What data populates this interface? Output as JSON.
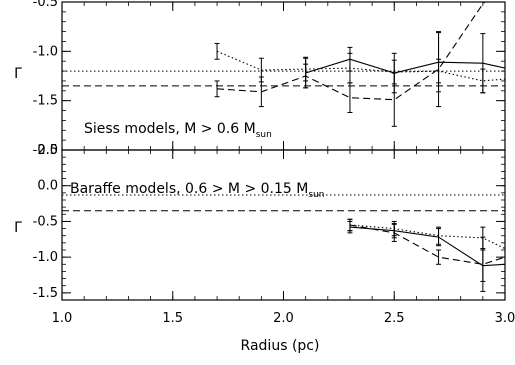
{
  "chart_data": [
    {
      "type": "line",
      "panel": "top",
      "annotation": {
        "text": "Siess models, M > 0.6 M",
        "sub": "sun"
      },
      "ylabel": "Γ",
      "xlim": [
        1.0,
        3.0
      ],
      "ylim": [
        -2.0,
        -0.5
      ],
      "yticks": [
        -0.5,
        -1.0,
        -1.5,
        -2.0
      ],
      "yticklabels": [
        "-0.5",
        "-1.0",
        "-1.5",
        "-2.0"
      ],
      "reference_lines": [
        {
          "style": "dotted",
          "y": -1.2
        },
        {
          "style": "dashed",
          "y": -1.35
        }
      ],
      "series": [
        {
          "style": "solid",
          "x": [
            2.1,
            2.3,
            2.5,
            2.7,
            2.9,
            3.0
          ],
          "y": [
            -1.22,
            -1.08,
            -1.22,
            -1.11,
            -1.12,
            -1.17
          ],
          "err": [
            0.15,
            0.12,
            0.2,
            0.3,
            0.3,
            0
          ]
        },
        {
          "style": "dashed",
          "x": [
            1.7,
            1.9,
            2.1,
            2.3,
            2.5,
            2.7,
            2.9,
            3.0
          ],
          "y": [
            -1.38,
            -1.41,
            -1.25,
            -1.47,
            -1.49,
            -1.18,
            -0.52,
            -0.3
          ],
          "err": [
            0.08,
            0.15,
            0.12,
            0.15,
            0.27,
            0.38,
            0,
            0
          ]
        },
        {
          "style": "dotted",
          "x": [
            1.7,
            1.9,
            2.1,
            2.3,
            2.5,
            2.7,
            2.9,
            3.0
          ],
          "y": [
            -1.0,
            -1.19,
            -1.18,
            -1.17,
            -1.21,
            -1.2,
            -1.3,
            -1.28
          ],
          "err": [
            0.08,
            0.12,
            0.12,
            0.15,
            0.12,
            0.12,
            0.12,
            0
          ]
        }
      ]
    },
    {
      "type": "line",
      "panel": "bottom",
      "annotation": {
        "text": "Baraffe models, 0.6 > M > 0.15 M",
        "sub": "sun"
      },
      "xlabel": "Radius (pc)",
      "ylabel": "Γ",
      "xlim": [
        1.0,
        3.0
      ],
      "ylim": [
        -1.6,
        0.5
      ],
      "xticks": [
        1.0,
        1.5,
        2.0,
        2.5,
        3.0
      ],
      "xticklabels": [
        "1.0",
        "1.5",
        "2.0",
        "2.5",
        "3.0"
      ],
      "yticks": [
        0.5,
        0.0,
        -0.5,
        -1.0,
        -1.5
      ],
      "yticklabels": [
        "0.5",
        "0.0",
        "-0.5",
        "-1.0",
        "-1.5"
      ],
      "reference_lines": [
        {
          "style": "dotted",
          "y": -0.13
        },
        {
          "style": "dashed",
          "y": -0.35
        }
      ],
      "series": [
        {
          "style": "solid",
          "x": [
            2.3,
            2.5,
            2.7,
            2.9,
            3.0
          ],
          "y": [
            -0.58,
            -0.63,
            -0.72,
            -1.12,
            -1.1
          ],
          "err": [
            0.08,
            0.1,
            0.12,
            0.22,
            0
          ]
        },
        {
          "style": "dashed",
          "x": [
            2.3,
            2.5,
            2.7,
            2.9,
            3.0
          ],
          "y": [
            -0.55,
            -0.66,
            -1.0,
            -1.1,
            -1.0
          ],
          "err": [
            0.08,
            0.12,
            0.1,
            0.38,
            0
          ]
        },
        {
          "style": "dotted",
          "x": [
            2.3,
            2.5,
            2.7,
            2.9,
            3.0
          ],
          "y": [
            -0.55,
            -0.6,
            -0.7,
            -0.73,
            -0.88
          ],
          "err": [
            0.08,
            0.1,
            0.12,
            0.15,
            0
          ]
        }
      ]
    }
  ]
}
